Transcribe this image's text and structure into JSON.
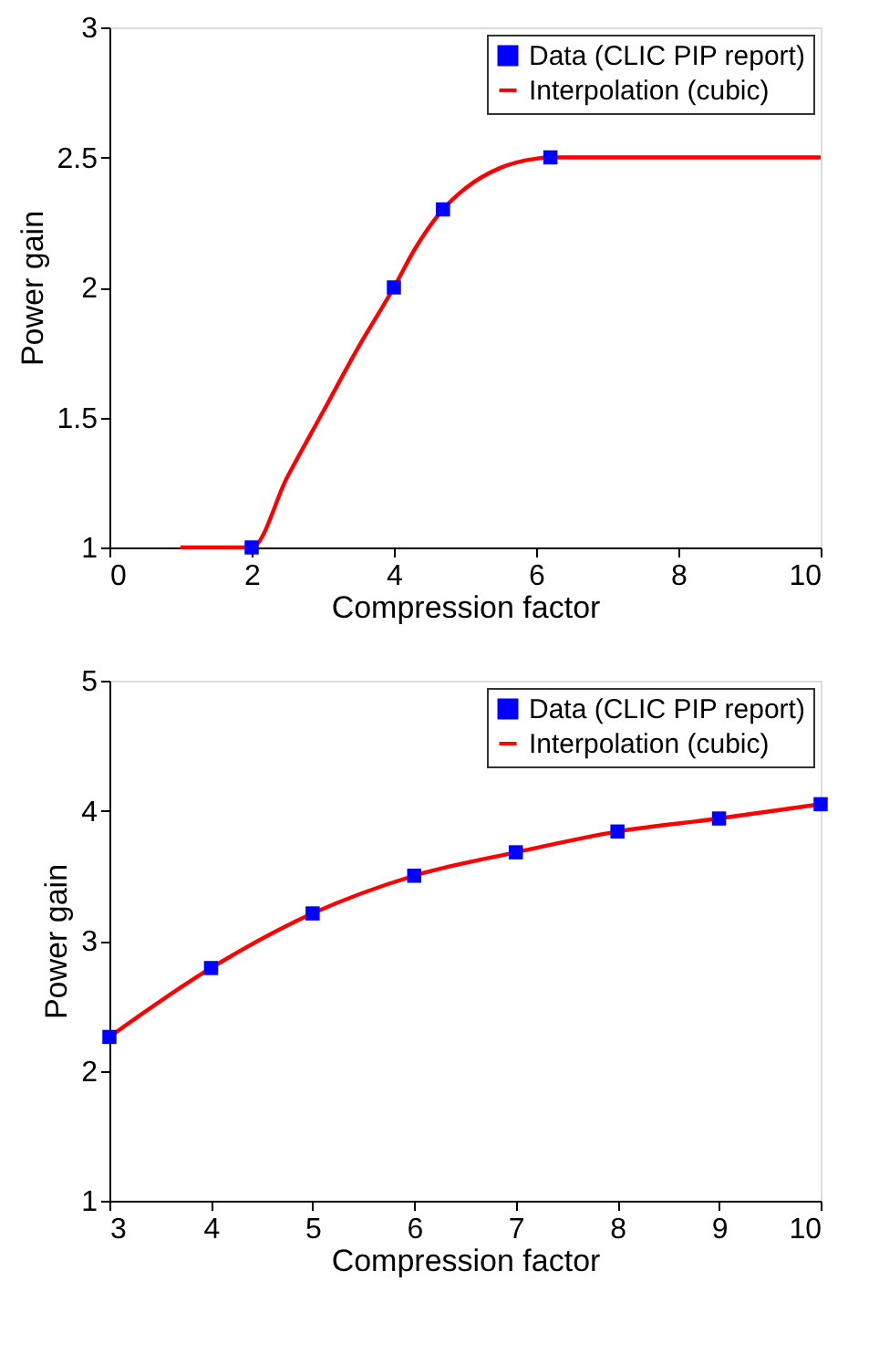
{
  "chart_data": [
    {
      "type": "line",
      "xlabel": "Compression factor",
      "ylabel": "Power gain",
      "xlim": [
        0,
        10
      ],
      "ylim": [
        1,
        3
      ],
      "xticks": [
        0,
        2,
        4,
        6,
        8,
        10
      ],
      "yticks": [
        1,
        1.5,
        2,
        2.5,
        3
      ],
      "grid": false,
      "legend": "top right",
      "series": [
        {
          "name": "Data (CLIC PIP report)",
          "type": "scatter",
          "marker": "square",
          "color": "#0000ff",
          "x": [
            2,
            4,
            4.69,
            6.2
          ],
          "values": [
            1,
            2,
            2.3,
            2.5
          ]
        },
        {
          "name": "Interpolation (cubic)",
          "marker": "none",
          "line_style": "solid",
          "color": "#ff0000",
          "x": [
            1,
            2,
            2.5,
            3,
            3.5,
            4,
            4.3,
            4.69,
            5,
            5.5,
            6,
            6.2,
            10
          ],
          "values": [
            1,
            1,
            1.27,
            1.52,
            1.77,
            2,
            2.15,
            2.3,
            2.38,
            2.46,
            2.495,
            2.5,
            2.5
          ]
        }
      ]
    },
    {
      "type": "line",
      "xlabel": "Compression factor",
      "ylabel": "Power gain",
      "xlim": [
        3,
        10
      ],
      "ylim": [
        1,
        5
      ],
      "xticks": [
        3,
        4,
        5,
        6,
        7,
        8,
        9,
        10
      ],
      "yticks": [
        1,
        2,
        3,
        4,
        5
      ],
      "grid": false,
      "legend": "top right",
      "series": [
        {
          "name": "Data (CLIC PIP report)",
          "type": "scatter",
          "marker": "square",
          "color": "#0000ff",
          "x": [
            3,
            4,
            5,
            6,
            7,
            8,
            9,
            10
          ],
          "values": [
            2.26,
            2.79,
            3.21,
            3.5,
            3.68,
            3.84,
            3.94,
            4.05
          ]
        },
        {
          "name": "Interpolation (cubic)",
          "marker": "none",
          "line_style": "solid",
          "color": "#ff0000",
          "x": [
            3,
            4,
            5,
            6,
            7,
            8,
            9,
            10
          ],
          "values": [
            2.26,
            2.79,
            3.21,
            3.5,
            3.68,
            3.84,
            3.94,
            4.05
          ]
        }
      ]
    }
  ]
}
